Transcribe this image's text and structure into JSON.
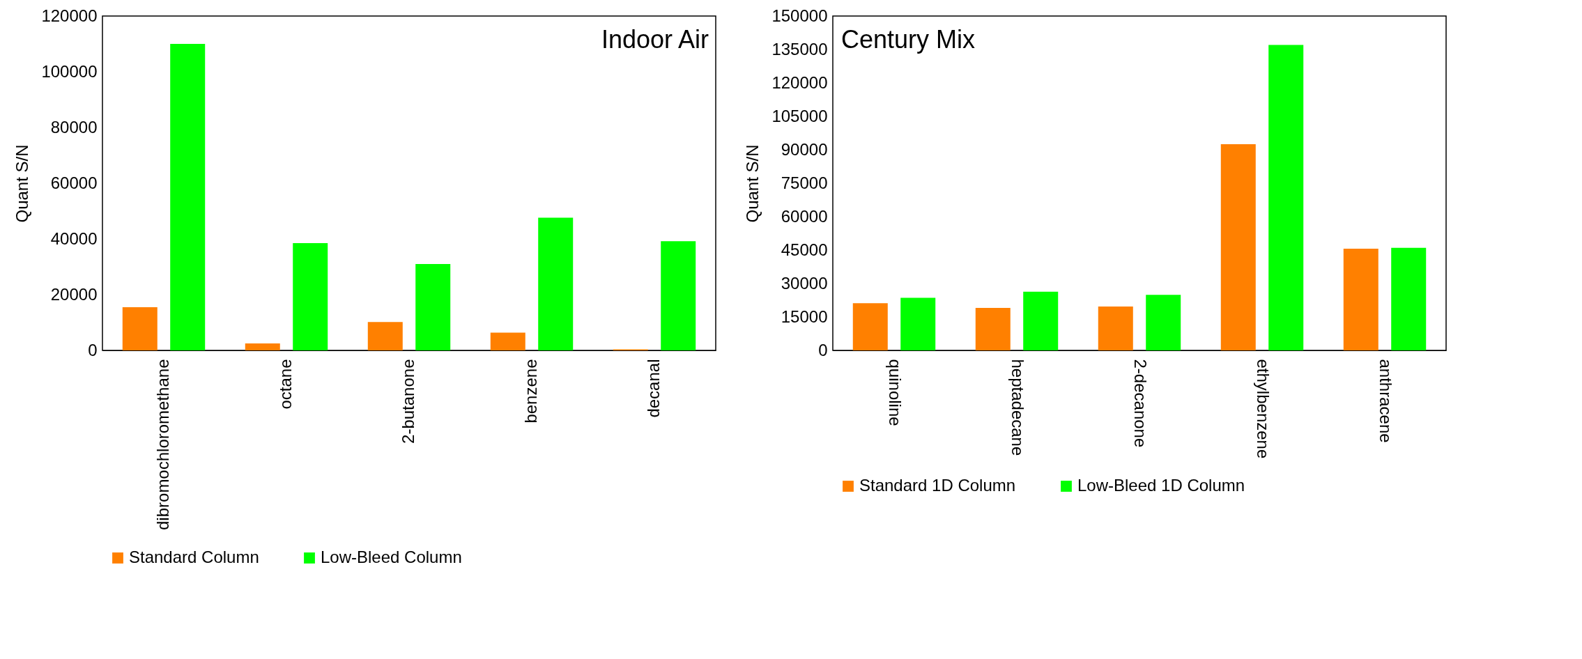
{
  "chart_data": [
    {
      "type": "bar",
      "ylabel": "Quant S/N",
      "annotations": [
        "Indoor Air"
      ],
      "categories": [
        "dibromochloromethane",
        "octane",
        "2-butanone",
        "benzene",
        "decanal"
      ],
      "series": [
        {
          "name": "Standard Column",
          "color": "#ff8000",
          "values": [
            15500,
            2500,
            10200,
            6400,
            400
          ]
        },
        {
          "name": "Low-Bleed Column",
          "color": "#00ff00",
          "values": [
            110000,
            38500,
            31000,
            47600,
            39200
          ]
        }
      ],
      "ylim": [
        0,
        120000
      ],
      "yticks": [
        0,
        20000,
        40000,
        60000,
        80000,
        100000,
        120000
      ],
      "grid": false,
      "legend": "bottom"
    },
    {
      "type": "bar",
      "ylabel": "Quant S/N",
      "annotations": [
        "Century Mix"
      ],
      "categories": [
        "quinoline",
        "heptadecane",
        "2-decanone",
        "ethylbenzene",
        "anthracene"
      ],
      "series": [
        {
          "name": "Standard 1D Column",
          "color": "#ff8000",
          "values": [
            21200,
            19100,
            19700,
            92500,
            45600
          ]
        },
        {
          "name": "Low-Bleed 1D Column",
          "color": "#00ff00",
          "values": [
            23600,
            26300,
            24900,
            137000,
            46000
          ]
        }
      ],
      "ylim": [
        0,
        150000
      ],
      "yticks": [
        0,
        15000,
        30000,
        45000,
        60000,
        75000,
        90000,
        105000,
        120000,
        135000,
        150000
      ],
      "grid": false,
      "legend": "bottom"
    }
  ]
}
